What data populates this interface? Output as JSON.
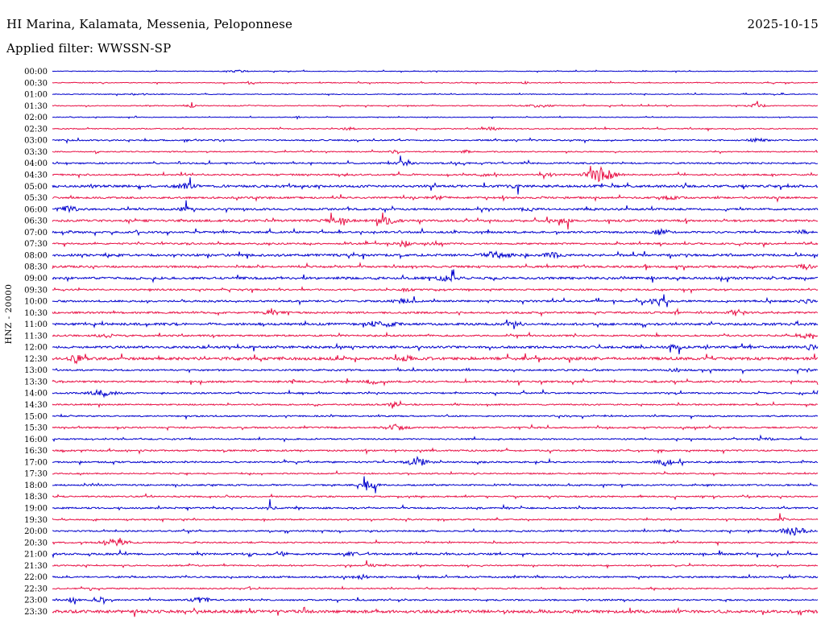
{
  "header": {
    "title": "HI Marina, Kalamata, Messenia, Peloponnese",
    "date": "2025-10-15",
    "filter_label": "Applied filter: WWSSN-SP"
  },
  "y_axis": {
    "channel_label": "HNZ - 20000"
  },
  "colors": {
    "blue": "#0000cc",
    "red": "#e81146",
    "text": "#000000",
    "background": "#ffffff"
  },
  "chart_data": {
    "type": "seismogram",
    "station": "HI Marina, Kalamata, Messenia, Peloponnese",
    "date": "2025-10-15",
    "filter": "WWSSN-SP",
    "channel": "HNZ",
    "scale": 20000,
    "minutes_per_row": 30,
    "trace_color_pattern": [
      "blue",
      "red"
    ],
    "rows": [
      {
        "time": "00:00",
        "color": "blue",
        "noise": 0.5,
        "bursts": [
          [
            297,
            10,
            1.2
          ]
        ]
      },
      {
        "time": "00:30",
        "color": "red",
        "noise": 0.55,
        "bursts": [
          [
            310,
            3,
            1.8
          ],
          [
            652,
            4,
            1.2
          ]
        ]
      },
      {
        "time": "01:00",
        "color": "blue",
        "noise": 0.5,
        "bursts": [
          [
            172,
            12,
            1.0
          ]
        ]
      },
      {
        "time": "01:30",
        "color": "red",
        "noise": 0.6,
        "bursts": [
          [
            237,
            5,
            1.8
          ],
          [
            668,
            16,
            1.6
          ],
          [
            940,
            10,
            2.2
          ]
        ]
      },
      {
        "time": "02:00",
        "color": "blue",
        "noise": 0.45,
        "bursts": [
          [
            370,
            2,
            2.5
          ]
        ]
      },
      {
        "time": "02:30",
        "color": "red",
        "noise": 0.7,
        "bursts": [
          [
            432,
            7,
            1.8
          ],
          [
            610,
            9,
            1.5
          ]
        ]
      },
      {
        "time": "03:00",
        "color": "blue",
        "noise": 0.9,
        "bursts": [
          [
            940,
            10,
            1.8
          ]
        ]
      },
      {
        "time": "03:30",
        "color": "red",
        "noise": 0.7,
        "bursts": [
          [
            120,
            3,
            2.2
          ],
          [
            490,
            7,
            1.8
          ],
          [
            578,
            7,
            1.5
          ]
        ]
      },
      {
        "time": "04:00",
        "color": "blue",
        "noise": 1.0,
        "bursts": [
          [
            502,
            9,
            1.8
          ]
        ]
      },
      {
        "time": "04:30",
        "color": "red",
        "noise": 1.0,
        "bursts": [
          [
            600,
            7,
            1.8
          ],
          [
            683,
            5,
            2.0
          ],
          [
            745,
            16,
            8.5
          ]
        ]
      },
      {
        "time": "05:00",
        "color": "blue",
        "noise": 1.5,
        "bursts": [
          [
            230,
            13,
            2.2
          ],
          [
            640,
            9,
            1.5
          ]
        ]
      },
      {
        "time": "05:30",
        "color": "red",
        "noise": 1.2,
        "bursts": [
          [
            545,
            9,
            2.0
          ],
          [
            830,
            10,
            2.0
          ]
        ]
      },
      {
        "time": "06:00",
        "color": "blue",
        "noise": 1.3,
        "bursts": [
          [
            85,
            12,
            2.8
          ],
          [
            230,
            7,
            2.2
          ],
          [
            655,
            9,
            1.8
          ]
        ]
      },
      {
        "time": "06:30",
        "color": "red",
        "noise": 1.4,
        "bursts": [
          [
            420,
            12,
            3.2
          ],
          [
            480,
            12,
            3.6
          ],
          [
            700,
            9,
            2.2
          ]
        ]
      },
      {
        "time": "07:00",
        "color": "blue",
        "noise": 1.2,
        "bursts": [
          [
            820,
            10,
            3.0
          ],
          [
            995,
            7,
            2.2
          ]
        ]
      },
      {
        "time": "07:30",
        "color": "red",
        "noise": 1.1,
        "bursts": [
          [
            500,
            8,
            3.8
          ],
          [
            540,
            7,
            2.2
          ]
        ]
      },
      {
        "time": "08:00",
        "color": "blue",
        "noise": 1.5,
        "bursts": [
          [
            615,
            18,
            3.4
          ],
          [
            685,
            12,
            2.4
          ]
        ]
      },
      {
        "time": "08:30",
        "color": "red",
        "noise": 1.3,
        "bursts": [
          [
            1000,
            9,
            2.6
          ]
        ]
      },
      {
        "time": "09:00",
        "color": "blue",
        "noise": 1.5,
        "bursts": [
          [
            555,
            11,
            3.2
          ]
        ]
      },
      {
        "time": "09:30",
        "color": "red",
        "noise": 1.0,
        "bursts": [
          [
            505,
            7,
            2.0
          ]
        ]
      },
      {
        "time": "10:00",
        "color": "blue",
        "noise": 1.2,
        "bursts": [
          [
            500,
            13,
            2.0
          ],
          [
            815,
            13,
            3.2
          ],
          [
            1000,
            7,
            2.0
          ]
        ]
      },
      {
        "time": "10:30",
        "color": "red",
        "noise": 1.2,
        "bursts": [
          [
            340,
            13,
            2.0
          ],
          [
            840,
            2,
            6.0
          ],
          [
            915,
            10,
            3.2
          ]
        ]
      },
      {
        "time": "11:00",
        "color": "blue",
        "noise": 1.5,
        "bursts": [
          [
            475,
            17,
            2.4
          ],
          [
            640,
            9,
            2.0
          ]
        ]
      },
      {
        "time": "11:30",
        "color": "red",
        "noise": 1.1,
        "bursts": [
          [
            130,
            10,
            2.0
          ],
          [
            1000,
            8,
            2.4
          ]
        ]
      },
      {
        "time": "12:00",
        "color": "blue",
        "noise": 1.5,
        "bursts": [
          [
            840,
            10,
            2.0
          ],
          [
            1005,
            7,
            2.8
          ]
        ]
      },
      {
        "time": "12:30",
        "color": "red",
        "noise": 1.8,
        "bursts": [
          [
            95,
            7,
            4.5
          ],
          [
            505,
            10,
            2.2
          ]
        ]
      },
      {
        "time": "13:00",
        "color": "blue",
        "noise": 1.1,
        "bursts": [
          [
            840,
            9,
            2.0
          ],
          [
            1000,
            7,
            2.0
          ]
        ]
      },
      {
        "time": "13:30",
        "color": "red",
        "noise": 1.2,
        "bursts": [
          [
            460,
            9,
            2.6
          ]
        ]
      },
      {
        "time": "14:00",
        "color": "blue",
        "noise": 1.0,
        "bursts": [
          [
            128,
            15,
            3.6
          ]
        ]
      },
      {
        "time": "14:30",
        "color": "red",
        "noise": 0.9,
        "bursts": [
          [
            490,
            7,
            2.4
          ]
        ]
      },
      {
        "time": "15:00",
        "color": "blue",
        "noise": 0.9,
        "bursts": []
      },
      {
        "time": "15:30",
        "color": "red",
        "noise": 1.0,
        "bursts": [
          [
            492,
            12,
            3.4
          ]
        ]
      },
      {
        "time": "16:00",
        "color": "blue",
        "noise": 0.9,
        "bursts": [
          [
            950,
            10,
            1.5
          ]
        ]
      },
      {
        "time": "16:30",
        "color": "red",
        "noise": 1.0,
        "bursts": []
      },
      {
        "time": "17:00",
        "color": "blue",
        "noise": 1.0,
        "bursts": [
          [
            518,
            13,
            4.5
          ],
          [
            825,
            11,
            4.0
          ]
        ]
      },
      {
        "time": "17:30",
        "color": "red",
        "noise": 0.85,
        "bursts": []
      },
      {
        "time": "18:00",
        "color": "blue",
        "noise": 1.0,
        "bursts": [
          [
            458,
            9,
            4.8
          ]
        ]
      },
      {
        "time": "18:30",
        "color": "red",
        "noise": 0.9,
        "bursts": []
      },
      {
        "time": "19:00",
        "color": "blue",
        "noise": 1.0,
        "bursts": [
          [
            335,
            7,
            2.0
          ]
        ]
      },
      {
        "time": "19:30",
        "color": "red",
        "noise": 0.85,
        "bursts": [
          [
            970,
            5,
            2.2
          ]
        ]
      },
      {
        "time": "20:00",
        "color": "blue",
        "noise": 1.0,
        "bursts": [
          [
            985,
            15,
            4.6
          ]
        ]
      },
      {
        "time": "20:30",
        "color": "red",
        "noise": 0.9,
        "bursts": [
          [
            140,
            14,
            4.0
          ]
        ]
      },
      {
        "time": "21:00",
        "color": "blue",
        "noise": 1.2,
        "bursts": [
          [
            350,
            9,
            2.0
          ],
          [
            430,
            9,
            2.0
          ]
        ]
      },
      {
        "time": "21:30",
        "color": "red",
        "noise": 0.85,
        "bursts": [
          [
            460,
            7,
            1.6
          ]
        ]
      },
      {
        "time": "22:00",
        "color": "blue",
        "noise": 1.1,
        "bursts": [
          [
            450,
            7,
            2.2
          ]
        ]
      },
      {
        "time": "22:30",
        "color": "red",
        "noise": 0.8,
        "bursts": [
          [
            310,
            3,
            1.6
          ]
        ]
      },
      {
        "time": "23:00",
        "color": "blue",
        "noise": 1.0,
        "bursts": [
          [
            90,
            5,
            2.8
          ],
          [
            125,
            5,
            2.8
          ],
          [
            250,
            12,
            2.6
          ]
        ]
      },
      {
        "time": "23:30",
        "color": "red",
        "noise": 1.9,
        "bursts": []
      }
    ]
  }
}
